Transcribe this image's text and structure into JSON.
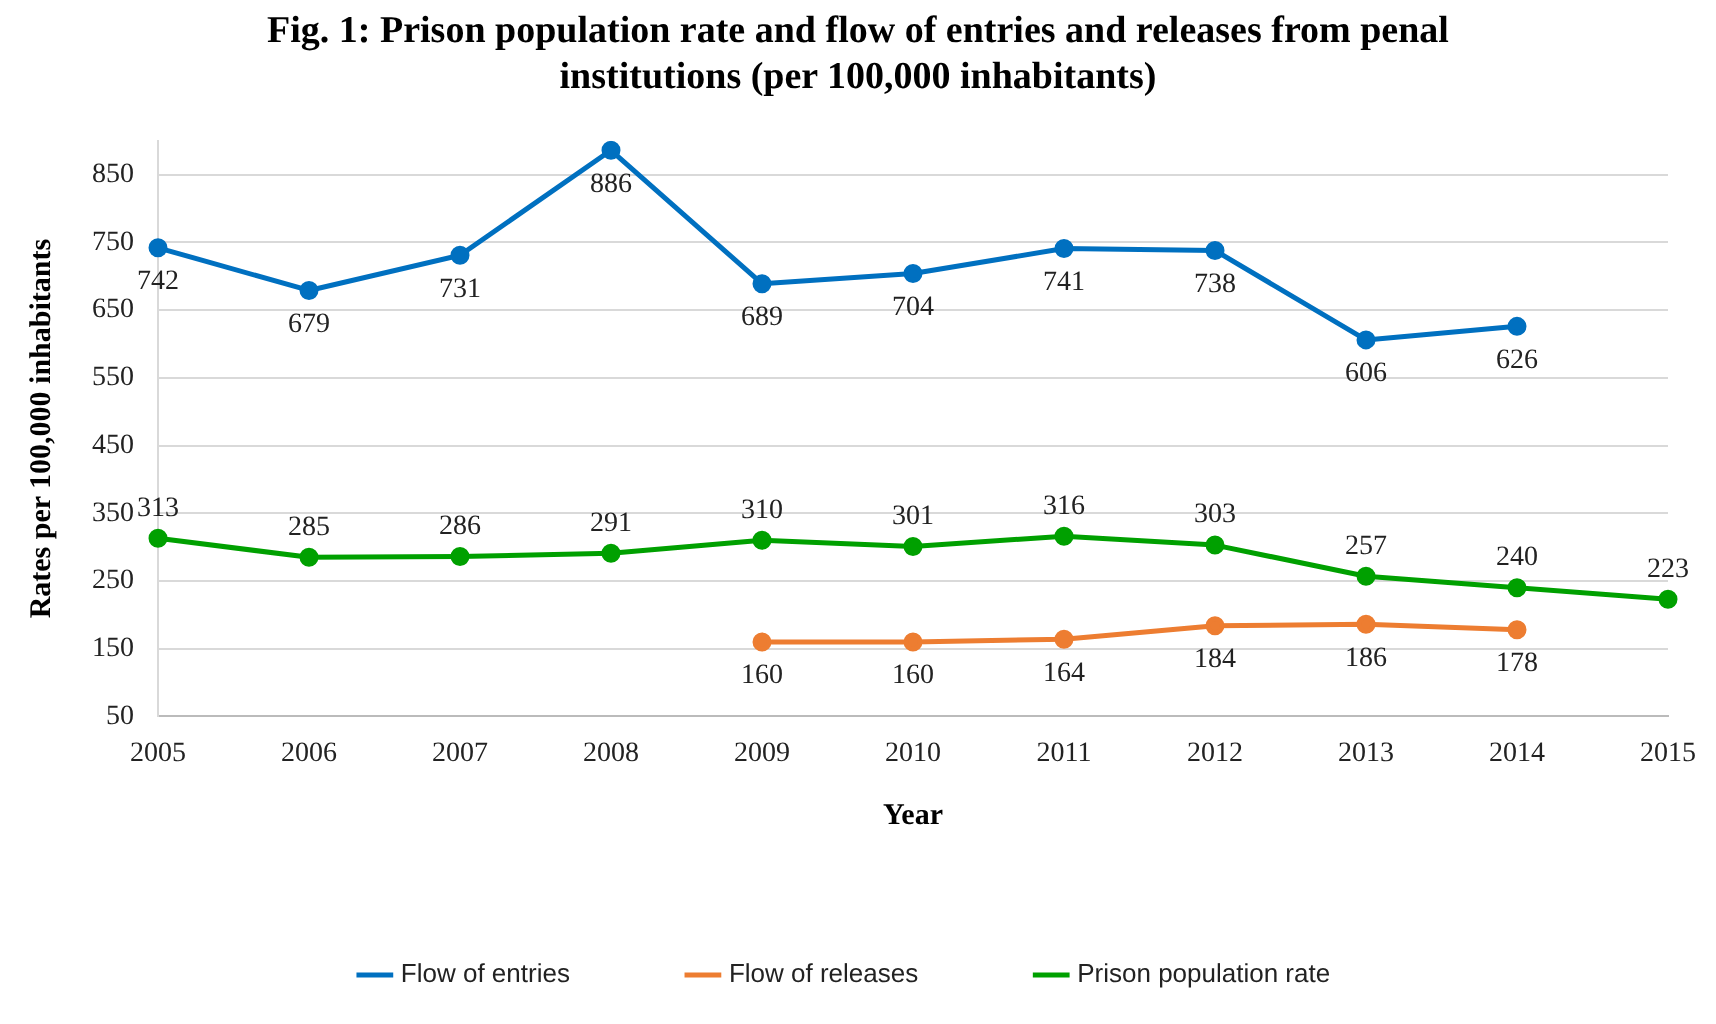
{
  "chart_data": {
    "type": "line",
    "title": "Fig. 1: Prison population rate and flow of entries and releases from penal institutions (per 100,000 inhabitants)",
    "xlabel": "Year",
    "ylabel": "Rates per 100,000 inhabitants",
    "categories": [
      "2005",
      "2006",
      "2007",
      "2008",
      "2009",
      "2010",
      "2011",
      "2012",
      "2013",
      "2014",
      "2015"
    ],
    "series": [
      {
        "name": "Flow of entries",
        "color": "#0070c0",
        "values": [
          742,
          679,
          731,
          886,
          689,
          704,
          741,
          738,
          606,
          626,
          null
        ]
      },
      {
        "name": "Flow of releases",
        "color": "#ed7d31",
        "values": [
          null,
          null,
          null,
          null,
          160,
          160,
          164,
          184,
          186,
          178,
          null
        ]
      },
      {
        "name": "Prison population rate",
        "color": "#00a000",
        "values": [
          313,
          285,
          286,
          291,
          310,
          301,
          316,
          303,
          257,
          240,
          223
        ]
      }
    ],
    "ylim": [
      50,
      900
    ],
    "yticks": [
      50,
      150,
      250,
      350,
      450,
      550,
      650,
      750,
      850
    ],
    "grid": "y",
    "legend": "bottom",
    "marker": "circle",
    "line_style": "solid",
    "data_labels": true
  }
}
